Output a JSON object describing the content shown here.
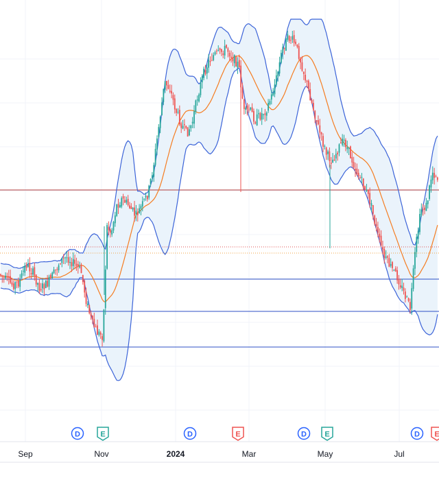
{
  "chart_data": {
    "type": "candlestick",
    "title": "",
    "xlabel": "",
    "ylabel": "",
    "x_tick_labels": [
      "Sep",
      "Nov",
      "2024",
      "Mar",
      "May",
      "Jul"
    ],
    "y_axis_visible": false,
    "grid": true,
    "indicators": [
      "Bollinger Bands",
      "Moving Average"
    ],
    "colors": {
      "up_candle": "#26a69a",
      "down_candle": "#ef5350",
      "band_line": "#3b63d8",
      "band_fill": "#eaf3fb",
      "basis_line": "#f57c20",
      "resistance_line": "#b03a3a",
      "support_line": "#2c4fc4",
      "dotted_red": "#e05050",
      "dotted_orange": "#f0a040",
      "dividend_marker": "#2962ff",
      "earnings_up": "#26a69a",
      "earnings_down": "#ef5350"
    },
    "event_markers": [
      {
        "label": "D",
        "kind": "dividend"
      },
      {
        "label": "E",
        "kind": "earnings-up"
      },
      {
        "label": "D",
        "kind": "dividend"
      },
      {
        "label": "E",
        "kind": "earnings-down"
      },
      {
        "label": "D",
        "kind": "dividend"
      },
      {
        "label": "E",
        "kind": "earnings-up"
      },
      {
        "label": "D",
        "kind": "dividend"
      },
      {
        "label": "E",
        "kind": "earnings-down"
      }
    ]
  }
}
